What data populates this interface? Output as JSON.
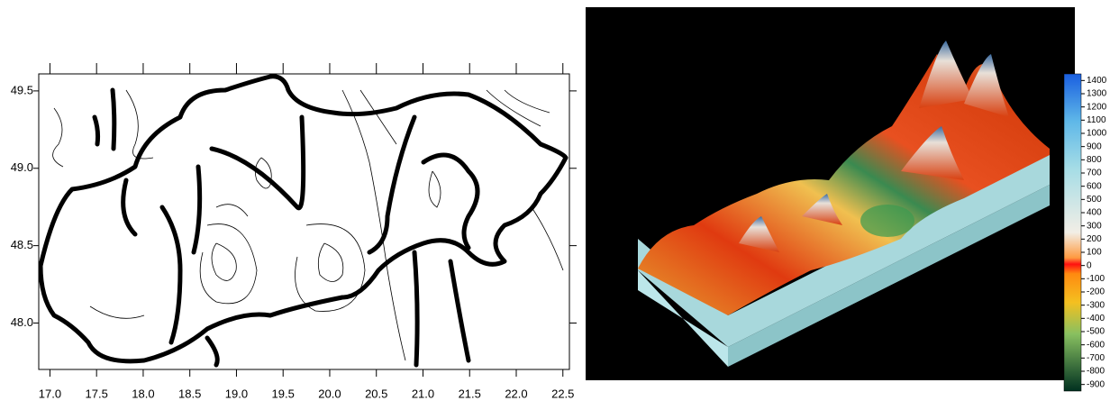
{
  "contour_map": {
    "xlim": [
      16.88,
      22.57
    ],
    "ylim": [
      47.7,
      49.61
    ],
    "xticks": [
      {
        "value": 17,
        "label": "17.0"
      },
      {
        "value": 17.5,
        "label": "17.5"
      },
      {
        "value": 18,
        "label": "18.0"
      },
      {
        "value": 18.5,
        "label": "18.5"
      },
      {
        "value": 19,
        "label": "19.0"
      },
      {
        "value": 19.5,
        "label": "19.5"
      },
      {
        "value": 20,
        "label": "20.0"
      },
      {
        "value": 20.5,
        "label": "20.5"
      },
      {
        "value": 21,
        "label": "21.0"
      },
      {
        "value": 21.5,
        "label": "21.5"
      },
      {
        "value": 22,
        "label": "22.0"
      },
      {
        "value": 22.5,
        "label": "22.5"
      }
    ],
    "yticks": [
      {
        "value": 48,
        "label": "48.0"
      },
      {
        "value": 48.5,
        "label": "48.5"
      },
      {
        "value": 49,
        "label": "49.0"
      },
      {
        "value": 49.5,
        "label": "49.5"
      }
    ]
  },
  "colorbar": {
    "lim": [
      -950,
      1450
    ],
    "ticks": [
      1400,
      1300,
      1200,
      1100,
      1000,
      900,
      800,
      700,
      600,
      500,
      400,
      300,
      200,
      100,
      0,
      -100,
      -200,
      -300,
      -400,
      -500,
      -600,
      -700,
      -800,
      -900
    ]
  }
}
